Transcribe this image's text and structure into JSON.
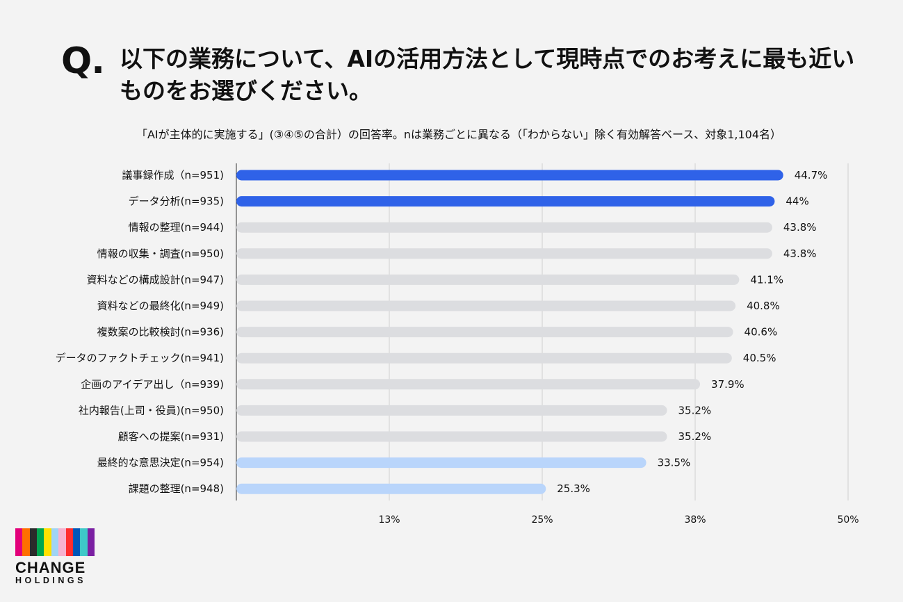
{
  "header": {
    "q_mark": "Q.",
    "question": "以下の業務について、AIの活用方法として現時点でのお考えに最も近いものをお選びください。",
    "subtitle": "「AIが主体的に実施する」(③④⑤の合計）の回答率。nは業務ごとに異なる（「わからない」除く有効解答ベース、対象1,104名）"
  },
  "logo": {
    "name": "CHANGE",
    "sub": "HOLDINGS",
    "stripe_colors": [
      "#e2007a",
      "#ff6f00",
      "#2b2b2b",
      "#00a650",
      "#ffe100",
      "#9fd4f5",
      "#f7b2cf",
      "#ff2d2d",
      "#0057b8",
      "#3ec8c8",
      "#7a1fa2"
    ]
  },
  "chart_data": {
    "type": "bar",
    "orientation": "horizontal",
    "categories": [
      "議事録作成（n=951)",
      "データ分析(n=935)",
      "情報の整理(n=944)",
      "情報の収集・調査(n=950)",
      "資料などの構成設計(n=947)",
      "資料などの最終化(n=949)",
      "複数案の比較検討(n=936)",
      "データのファクトチェック(n=941)",
      "企画のアイデア出し（n=939)",
      "社内報告(上司・役員)(n=950)",
      "顧客への提案(n=931)",
      "最終的な意思決定(n=954)",
      "課題の整理(n=948)"
    ],
    "values": [
      44.7,
      44,
      43.8,
      43.8,
      41.1,
      40.8,
      40.6,
      40.5,
      37.9,
      35.2,
      35.2,
      33.5,
      25.3
    ],
    "value_labels": [
      "44.7%",
      "44%",
      "43.8%",
      "43.8%",
      "41.1%",
      "40.8%",
      "40.6%",
      "40.5%",
      "37.9%",
      "35.2%",
      "35.2%",
      "33.5%",
      "25.3%"
    ],
    "bar_colors": [
      "#2f62e8",
      "#2f62e8",
      "#dcdde0",
      "#dcdde0",
      "#dcdde0",
      "#dcdde0",
      "#dcdde0",
      "#dcdde0",
      "#dcdde0",
      "#dcdde0",
      "#dcdde0",
      "#b9d5fb",
      "#b9d5fb"
    ],
    "xlim": [
      0,
      50
    ],
    "xticks": [
      12.5,
      25,
      37.5,
      50
    ],
    "xtick_labels": [
      "13%",
      "25%",
      "38%",
      "50%"
    ],
    "grid": true
  }
}
